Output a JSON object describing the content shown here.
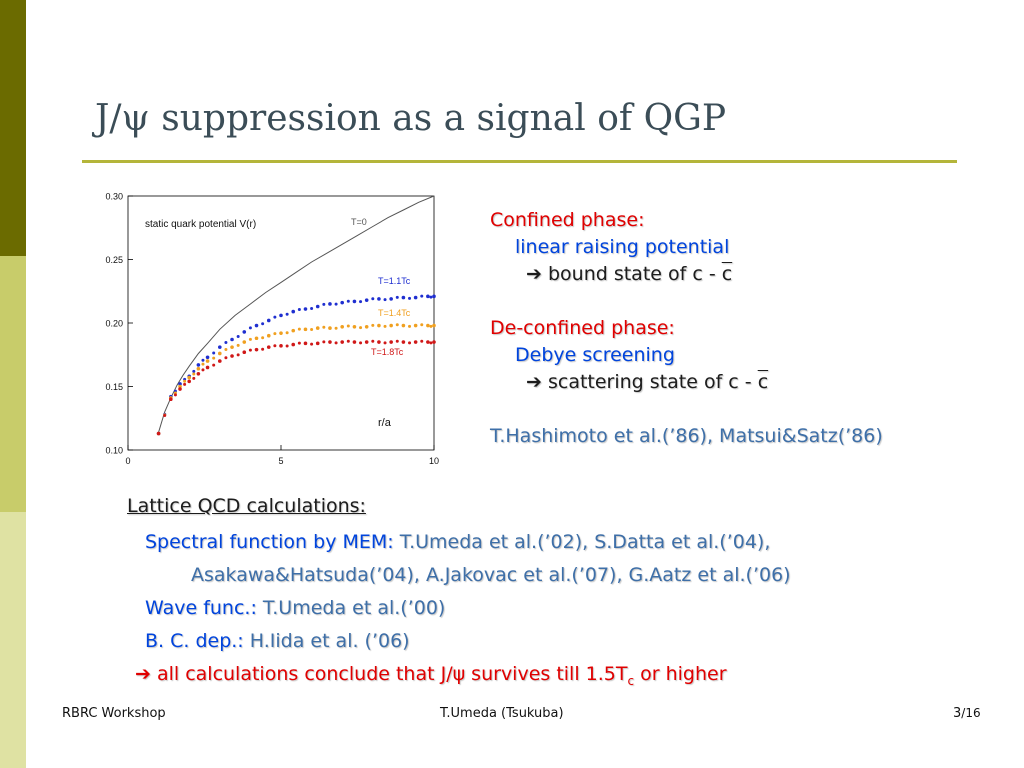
{
  "title": "J/ψ suppression as a signal of QGP",
  "chart_data": {
    "type": "scatter",
    "annotation": "static quark potential V(r)",
    "xlabel": "r/a",
    "ylabel": "",
    "xlim": [
      0,
      10
    ],
    "ylim": [
      0.1,
      0.3
    ],
    "x_ticks": [
      "0",
      "5",
      "10"
    ],
    "y_ticks": [
      "0.10",
      "0.15",
      "0.20",
      "0.25",
      "0.30"
    ],
    "grid": false,
    "series": [
      {
        "name": "T=0",
        "color": "#555555",
        "style": "line",
        "x": [
          1.0,
          1.2,
          1.4,
          1.6,
          1.8,
          2.0,
          2.3,
          2.6,
          3.0,
          3.5,
          4.0,
          4.5,
          5.0,
          5.5,
          6.0,
          6.5,
          7.0,
          7.5,
          8.0,
          8.5,
          9.0,
          9.5,
          10.0
        ],
        "values": [
          0.114,
          0.13,
          0.141,
          0.151,
          0.159,
          0.166,
          0.176,
          0.184,
          0.195,
          0.206,
          0.215,
          0.224,
          0.232,
          0.24,
          0.248,
          0.255,
          0.262,
          0.269,
          0.276,
          0.283,
          0.289,
          0.295,
          0.3
        ]
      },
      {
        "name": "T=1.1Tc",
        "color": "#1f2fd0",
        "style": "points",
        "x": [
          1.0,
          1.4,
          1.7,
          2.0,
          2.3,
          2.6,
          3.0,
          3.4,
          3.8,
          4.2,
          4.6,
          5.0,
          5.4,
          5.8,
          6.2,
          6.6,
          7.0,
          7.4,
          7.8,
          8.2,
          8.6,
          9.0,
          9.4,
          9.8,
          10.0
        ],
        "values": [
          0.113,
          0.142,
          0.152,
          0.158,
          0.167,
          0.173,
          0.181,
          0.187,
          0.193,
          0.198,
          0.202,
          0.206,
          0.209,
          0.211,
          0.213,
          0.215,
          0.216,
          0.217,
          0.218,
          0.219,
          0.219,
          0.22,
          0.22,
          0.221,
          0.221
        ]
      },
      {
        "name": "T=1.4Tc",
        "color": "#f0a020",
        "style": "points",
        "x": [
          1.0,
          1.4,
          1.7,
          2.0,
          2.3,
          2.6,
          3.0,
          3.4,
          3.8,
          4.2,
          4.6,
          5.0,
          5.4,
          5.8,
          6.2,
          6.6,
          7.0,
          7.4,
          7.8,
          8.2,
          8.6,
          9.0,
          9.4,
          9.8,
          10.0
        ],
        "values": [
          0.113,
          0.141,
          0.15,
          0.157,
          0.164,
          0.17,
          0.176,
          0.181,
          0.185,
          0.188,
          0.19,
          0.192,
          0.194,
          0.195,
          0.196,
          0.196,
          0.197,
          0.197,
          0.197,
          0.198,
          0.198,
          0.198,
          0.198,
          0.198,
          0.198
        ]
      },
      {
        "name": "T=1.8Tc",
        "color": "#d01818",
        "style": "points",
        "x": [
          1.0,
          1.4,
          1.7,
          2.0,
          2.3,
          2.6,
          3.0,
          3.4,
          3.8,
          4.2,
          4.6,
          5.0,
          5.4,
          5.8,
          6.2,
          6.6,
          7.0,
          7.4,
          7.8,
          8.2,
          8.6,
          9.0,
          9.4,
          9.8,
          10.0
        ],
        "values": [
          0.113,
          0.14,
          0.148,
          0.154,
          0.16,
          0.165,
          0.17,
          0.174,
          0.177,
          0.179,
          0.181,
          0.182,
          0.183,
          0.184,
          0.184,
          0.185,
          0.185,
          0.185,
          0.185,
          0.185,
          0.185,
          0.185,
          0.185,
          0.185,
          0.185
        ]
      }
    ]
  },
  "right_panel": {
    "confined_label": "Confined phase:",
    "confined_desc": "linear raising potential",
    "confined_arrow": "➔",
    "confined_result": "bound state of c - ",
    "confined_cbar": "c",
    "deconfined_label": "De-confined phase:",
    "deconfined_desc": "Debye screening",
    "deconfined_arrow": "➔",
    "deconfined_result": "scattering state of c - ",
    "deconfined_cbar": "c",
    "references": "T.Hashimoto et al.(’86), Matsui&Satz(’86)"
  },
  "lattice": {
    "heading": "Lattice QCD calculations:",
    "spectral_label": "Spectral function by MEM:",
    "spectral_refs_1": " T.Umeda et al.(’02), S.Datta et al.(’04),",
    "spectral_refs_2": "Asakawa&Hatsuda(’04), A.Jakovac et al.(’07), G.Aatz et al.(’06)",
    "wave_label": "Wave func.:",
    "wave_refs": " T.Umeda et al.(’00)",
    "bc_label": "B. C. dep.:",
    "bc_refs": " H.Iida et al. (’06)",
    "conclusion_arrow": "➔",
    "conclusion_text": " all calculations conclude that J/ψ survives till 1.5T",
    "conclusion_sub": "c",
    "conclusion_tail": " or higher"
  },
  "footer": {
    "left": "RBRC Workshop",
    "center": "T.Umeda (Tsukuba)",
    "page": "3",
    "total": "/16"
  },
  "colors": {
    "band_dark": "#6b6b00",
    "band_mid": "#c8cc6a",
    "band_light": "#dfe2a3",
    "rule": "#b4b53a",
    "red": "#e00000",
    "blue": "#0044dd",
    "title": "#3b4d57"
  }
}
